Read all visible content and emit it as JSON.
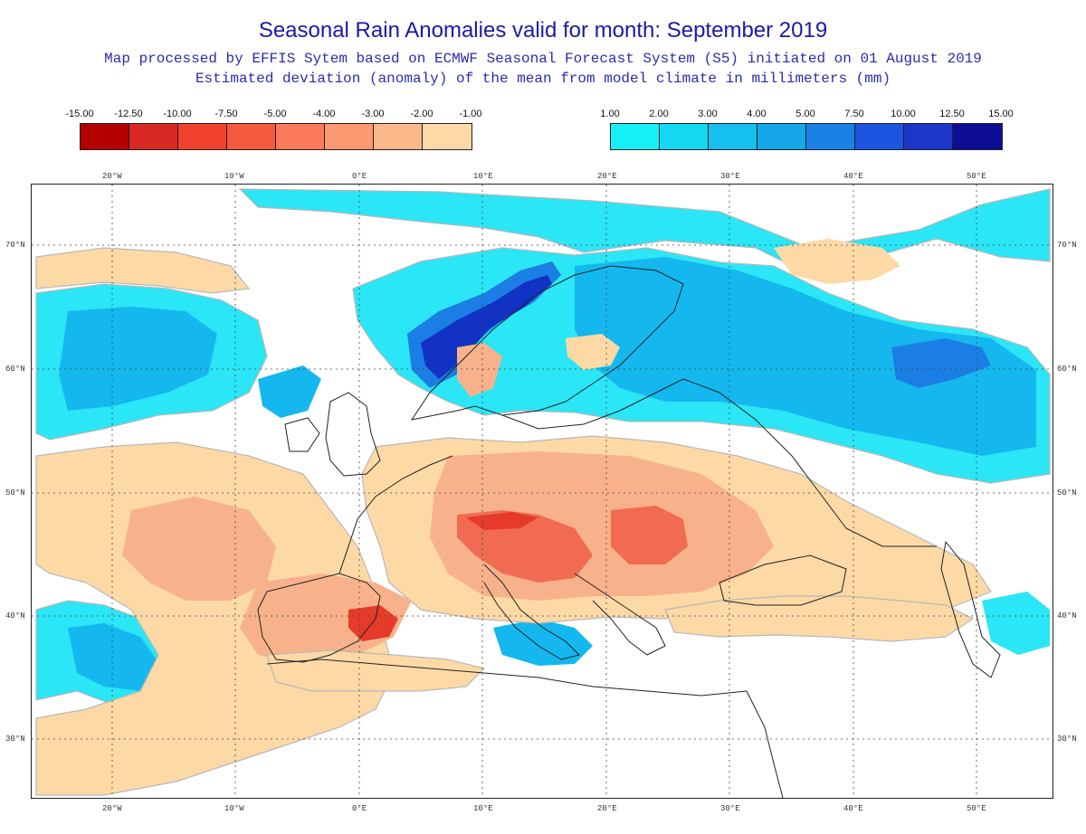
{
  "title": "Seasonal Rain Anomalies valid for month: September 2019",
  "subtitle1": "Map processed by EFFIS Sytem based on ECMWF Seasonal Forecast System (S5) initiated on 01 August 2019",
  "subtitle2": "Estimated deviation (anomaly) of the mean from model climate in millimeters (mm)",
  "legend_negative": {
    "ticks": [
      "-15.00",
      "-12.50",
      "-10.00",
      "-7.50",
      "-5.00",
      "-4.00",
      "-3.00",
      "-2.00",
      "-1.00"
    ],
    "colors": [
      "#b50000",
      "#d82a22",
      "#f0412f",
      "#f55a3e",
      "#fa7a59",
      "#fb9a70",
      "#fcb98b",
      "#fdd9a6"
    ]
  },
  "legend_positive": {
    "ticks": [
      "1.00",
      "2.00",
      "3.00",
      "4.00",
      "5.00",
      "7.50",
      "10.00",
      "12.50",
      "15.00"
    ],
    "colors": [
      "#14f0f6",
      "#12d8f2",
      "#16c0ee",
      "#16a6ea",
      "#1a82e6",
      "#1c56e0",
      "#1b36c8",
      "#0d0d96"
    ]
  },
  "map": {
    "lon_labels": [
      "20°W",
      "10°W",
      "0°E",
      "10°E",
      "20°E",
      "30°E",
      "40°E",
      "50°E"
    ],
    "lat_labels": [
      "70°N",
      "60°N",
      "50°N",
      "40°N",
      "30°N"
    ],
    "colors": {
      "ocean": "#ffffff",
      "coast": "#222222",
      "grid": "#444444",
      "dry_light": "#fdd9a6",
      "dry_mid": "#f8b28b",
      "dry_strong": "#f06b52",
      "dry_extreme": "#e63a2a",
      "wet_light": "#2ae6f6",
      "wet_mid": "#14b8ee",
      "wet_strong": "#1a7ee4",
      "wet_extreme": "#1232c4",
      "contour_grey": "#b8b8b8"
    }
  }
}
